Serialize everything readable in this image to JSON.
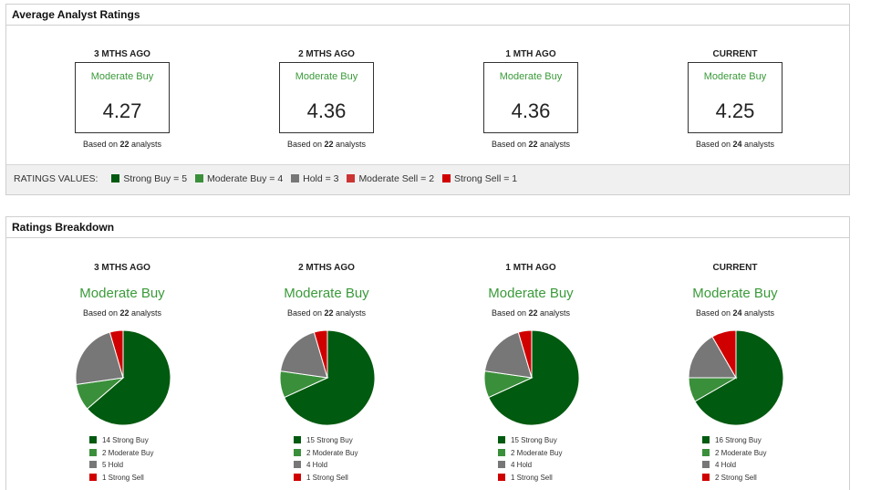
{
  "colors": {
    "strong_buy": "#005a0f",
    "moderate_buy": "#3a8f3a",
    "hold": "#777777",
    "moderate_sell": "#cc3333",
    "strong_sell": "#d00000",
    "accent_green": "#3a9a3a"
  },
  "average_ratings": {
    "title": "Average Analyst Ratings",
    "columns": [
      {
        "period": "3 MTHS AGO",
        "label": "Moderate Buy",
        "value": "4.27",
        "based_prefix": "Based on ",
        "analysts": "22",
        "based_suffix": " analysts"
      },
      {
        "period": "2 MTHS AGO",
        "label": "Moderate Buy",
        "value": "4.36",
        "based_prefix": "Based on ",
        "analysts": "22",
        "based_suffix": " analysts"
      },
      {
        "period": "1 MTH AGO",
        "label": "Moderate Buy",
        "value": "4.36",
        "based_prefix": "Based on ",
        "analysts": "22",
        "based_suffix": " analysts"
      },
      {
        "period": "CURRENT",
        "label": "Moderate Buy",
        "value": "4.25",
        "based_prefix": "Based on ",
        "analysts": "24",
        "based_suffix": " analysts"
      }
    ],
    "ratings_values": {
      "label": "RATINGS VALUES:",
      "items": [
        {
          "text": "Strong Buy = 5",
          "color": "#005a0f"
        },
        {
          "text": "Moderate Buy = 4",
          "color": "#3a8f3a"
        },
        {
          "text": "Hold = 3",
          "color": "#777777"
        },
        {
          "text": "Moderate Sell = 2",
          "color": "#cc3333"
        },
        {
          "text": "Strong Sell = 1",
          "color": "#d00000"
        }
      ]
    }
  },
  "ratings_breakdown": {
    "title": "Ratings Breakdown",
    "columns": [
      {
        "period": "3 MTHS AGO",
        "label": "Moderate Buy",
        "based_prefix": "Based on ",
        "analysts": "22",
        "based_suffix": " analysts",
        "legend": [
          "14 Strong Buy",
          "2 Moderate Buy",
          "5 Hold",
          "1 Strong Sell"
        ]
      },
      {
        "period": "2 MTHS AGO",
        "label": "Moderate Buy",
        "based_prefix": "Based on ",
        "analysts": "22",
        "based_suffix": " analysts",
        "legend": [
          "15 Strong Buy",
          "2 Moderate Buy",
          "4 Hold",
          "1 Strong Sell"
        ]
      },
      {
        "period": "1 MTH AGO",
        "label": "Moderate Buy",
        "based_prefix": "Based on ",
        "analysts": "22",
        "based_suffix": " analysts",
        "legend": [
          "15 Strong Buy",
          "2 Moderate Buy",
          "4 Hold",
          "1 Strong Sell"
        ]
      },
      {
        "period": "CURRENT",
        "label": "Moderate Buy",
        "based_prefix": "Based on ",
        "analysts": "24",
        "based_suffix": " analysts",
        "legend": [
          "16 Strong Buy",
          "2 Moderate Buy",
          "4 Hold",
          "2 Strong Sell"
        ]
      }
    ]
  },
  "chart_data": [
    {
      "type": "pie",
      "categories": [
        "Strong Buy",
        "Moderate Buy",
        "Hold",
        "Strong Sell"
      ],
      "values": [
        14,
        2,
        5,
        1
      ]
    },
    {
      "type": "pie",
      "categories": [
        "Strong Buy",
        "Moderate Buy",
        "Hold",
        "Strong Sell"
      ],
      "values": [
        15,
        2,
        4,
        1
      ]
    },
    {
      "type": "pie",
      "categories": [
        "Strong Buy",
        "Moderate Buy",
        "Hold",
        "Strong Sell"
      ],
      "values": [
        15,
        2,
        4,
        1
      ]
    },
    {
      "type": "pie",
      "categories": [
        "Strong Buy",
        "Moderate Buy",
        "Hold",
        "Strong Sell"
      ],
      "values": [
        16,
        2,
        4,
        2
      ]
    }
  ]
}
